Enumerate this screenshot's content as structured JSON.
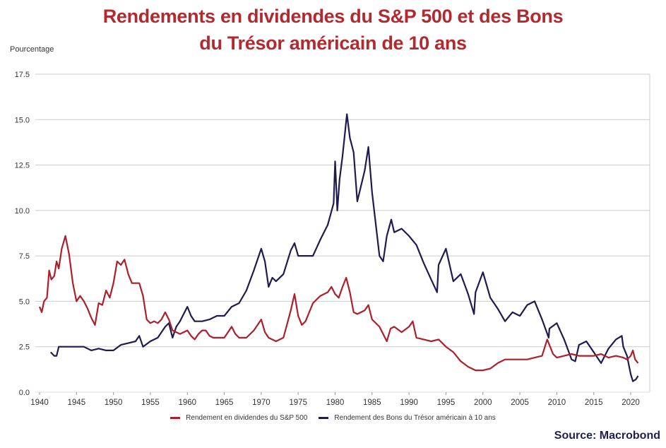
{
  "title_line1": "Rendements en dividendes du S&P 500 et des Bons",
  "title_line2": "du Trésor américain de 10 ans",
  "source": "Source: Macrobond",
  "colors": {
    "sp500": "#ad1f2a",
    "treasury": "#1e1b4f",
    "title": "#b02a2f",
    "grid": "#cccccc"
  },
  "chart_data": {
    "type": "line",
    "title": "Rendements en dividendes du S&P 500 et des Bons du Trésor américain de 10 ans",
    "xlabel": "",
    "ylabel": "Pourcentage",
    "xlim": [
      1940,
      2022.5
    ],
    "ylim": [
      0,
      17.5
    ],
    "grid": true,
    "legend_position": "bottom",
    "x_ticks": [
      "1940",
      "1945",
      "1950",
      "1955",
      "1960",
      "1965",
      "1970",
      "1975",
      "1980",
      "1985",
      "1990",
      "1995",
      "2000",
      "2005",
      "2010",
      "2015",
      "2020"
    ],
    "y_ticks": [
      "0.0",
      "2.5",
      "5.0",
      "7.5",
      "10.0",
      "12.5",
      "15.0",
      "17.5"
    ],
    "series": [
      {
        "name": "Rendement en dividendes du S&P 500",
        "x": [
          1940,
          1940.3,
          1940.6,
          1941,
          1941.3,
          1941.6,
          1942,
          1942.3,
          1942.6,
          1943,
          1943.5,
          1944,
          1944.5,
          1945,
          1945.5,
          1946,
          1946.5,
          1947,
          1947.5,
          1948,
          1948.5,
          1949,
          1949.5,
          1950,
          1950.5,
          1951,
          1951.5,
          1952,
          1952.5,
          1953,
          1953.5,
          1954,
          1954.5,
          1955,
          1955.5,
          1956,
          1956.5,
          1957,
          1957.5,
          1958,
          1958.5,
          1959,
          1959.5,
          1960,
          1960.5,
          1961,
          1961.5,
          1962,
          1962.5,
          1963,
          1963.5,
          1964,
          1965,
          1966,
          1966.5,
          1967,
          1968,
          1969,
          1970,
          1970.5,
          1971,
          1972,
          1973,
          1974,
          1974.5,
          1975,
          1975.5,
          1976,
          1977,
          1978,
          1979,
          1979.5,
          1980,
          1980.5,
          1981,
          1981.5,
          1982,
          1982.5,
          1983,
          1984,
          1984.5,
          1985,
          1986,
          1987,
          1987.5,
          1988,
          1989,
          1990,
          1990.5,
          1991,
          1992,
          1993,
          1994,
          1995,
          1996,
          1997,
          1998,
          1999,
          2000,
          2001,
          2002,
          2003,
          2004,
          2005,
          2006,
          2007,
          2008,
          2008.7,
          2009,
          2009.5,
          2010,
          2011,
          2012,
          2013,
          2014,
          2015,
          2016,
          2017,
          2018,
          2019,
          2019.5,
          2020,
          2020.3,
          2020.6,
          2021
        ],
        "values": [
          4.7,
          4.4,
          5.0,
          5.2,
          6.7,
          6.2,
          6.4,
          7.2,
          6.8,
          7.9,
          8.6,
          7.6,
          6.0,
          5.0,
          5.3,
          5.0,
          4.6,
          4.1,
          3.7,
          4.9,
          4.8,
          5.6,
          5.2,
          6.0,
          7.2,
          7.0,
          7.3,
          6.5,
          6.0,
          6.0,
          6.0,
          5.3,
          4.0,
          3.8,
          3.9,
          3.8,
          4.0,
          4.4,
          4.0,
          3.4,
          3.3,
          3.2,
          3.3,
          3.4,
          3.1,
          2.9,
          3.2,
          3.4,
          3.4,
          3.1,
          3.0,
          3.0,
          3.0,
          3.6,
          3.2,
          3.0,
          3.0,
          3.4,
          4.0,
          3.3,
          3.0,
          2.8,
          3.0,
          4.5,
          5.4,
          4.2,
          3.7,
          3.9,
          4.9,
          5.3,
          5.5,
          5.8,
          5.4,
          5.2,
          5.8,
          6.3,
          5.5,
          4.4,
          4.3,
          4.5,
          4.8,
          4.0,
          3.6,
          2.8,
          3.5,
          3.6,
          3.3,
          3.6,
          3.9,
          3.0,
          2.9,
          2.8,
          2.9,
          2.5,
          2.2,
          1.7,
          1.4,
          1.2,
          1.2,
          1.3,
          1.6,
          1.8,
          1.8,
          1.8,
          1.8,
          1.9,
          2.0,
          2.9,
          2.6,
          2.1,
          1.9,
          2.0,
          2.1,
          2.0,
          2.0,
          2.0,
          2.1,
          1.9,
          2.0,
          1.9,
          1.8,
          2.0,
          2.3,
          1.8,
          1.6
        ]
      },
      {
        "name": "Rendement des Bons du Trésor américain à 10 ans",
        "x": [
          1941.5,
          1942,
          1942.3,
          1942.6,
          1943,
          1944,
          1945,
          1946,
          1947,
          1948,
          1949,
          1950,
          1951,
          1952,
          1953,
          1953.5,
          1954,
          1955,
          1956,
          1957,
          1957.5,
          1958,
          1958.5,
          1959,
          1960,
          1960.5,
          1961,
          1962,
          1963,
          1964,
          1965,
          1966,
          1967,
          1968,
          1969,
          1970,
          1970.5,
          1971,
          1971.5,
          1972,
          1973,
          1974,
          1974.5,
          1975,
          1976,
          1977,
          1978,
          1979,
          1979.8,
          1980,
          1980.3,
          1980.6,
          1981,
          1981.6,
          1982,
          1982.5,
          1983,
          1984,
          1984.5,
          1985,
          1986,
          1986.5,
          1987,
          1987.6,
          1988,
          1989,
          1990,
          1991,
          1992,
          1993,
          1993.8,
          1994,
          1995,
          1996,
          1997,
          1998,
          1998.8,
          1999,
          2000,
          2001,
          2002,
          2003,
          2004,
          2005,
          2006,
          2007,
          2008,
          2008.9,
          2009,
          2010,
          2011,
          2012,
          2012.5,
          2013,
          2014,
          2015,
          2016,
          2017,
          2018,
          2018.8,
          2019,
          2019.5,
          2020,
          2020.3,
          2020.7,
          2021
        ],
        "values": [
          2.2,
          2.0,
          2.0,
          2.5,
          2.5,
          2.5,
          2.5,
          2.5,
          2.3,
          2.4,
          2.3,
          2.3,
          2.6,
          2.7,
          2.8,
          3.1,
          2.5,
          2.8,
          3.0,
          3.6,
          3.8,
          3.0,
          3.6,
          3.9,
          4.7,
          4.2,
          3.9,
          3.9,
          4.0,
          4.2,
          4.2,
          4.7,
          4.9,
          5.6,
          6.7,
          7.9,
          7.2,
          5.8,
          6.3,
          6.1,
          6.5,
          7.8,
          8.2,
          7.5,
          7.5,
          7.5,
          8.4,
          9.2,
          10.4,
          12.7,
          10.0,
          11.7,
          13.0,
          15.3,
          14.0,
          13.2,
          10.5,
          12.2,
          13.5,
          11.0,
          7.5,
          7.2,
          8.6,
          9.5,
          8.8,
          9.0,
          8.6,
          8.1,
          7.1,
          6.2,
          5.5,
          7.0,
          7.9,
          6.1,
          6.5,
          5.4,
          4.3,
          5.5,
          6.6,
          5.2,
          4.6,
          3.9,
          4.4,
          4.2,
          4.8,
          5.0,
          4.0,
          3.0,
          3.5,
          3.8,
          2.9,
          1.8,
          1.7,
          2.6,
          2.8,
          2.2,
          1.6,
          2.4,
          2.9,
          3.1,
          2.5,
          2.0,
          1.0,
          0.6,
          0.7,
          0.9
        ]
      }
    ]
  }
}
